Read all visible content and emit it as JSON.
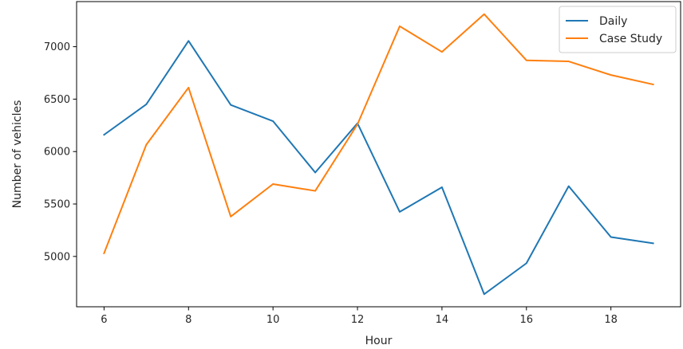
{
  "chart_data": {
    "type": "line",
    "title": "",
    "xlabel": "Hour",
    "ylabel": "Number of vehicles",
    "x": [
      6,
      7,
      8,
      9,
      10,
      11,
      12,
      13,
      14,
      15,
      16,
      17,
      18,
      19
    ],
    "xlim": [
      5.35,
      19.65
    ],
    "ylim": [
      4520,
      7430
    ],
    "xticks": [
      6,
      8,
      10,
      12,
      14,
      16,
      18
    ],
    "yticks": [
      5000,
      5500,
      6000,
      6500,
      7000
    ],
    "grid": false,
    "legend_position": "top-right",
    "series": [
      {
        "name": "Daily",
        "color": "#1f77b4",
        "values": [
          6160,
          6450,
          7055,
          6445,
          6290,
          5800,
          6270,
          5425,
          5660,
          4640,
          4935,
          5670,
          5185,
          5125
        ]
      },
      {
        "name": "Case Study",
        "color": "#ff7f0e",
        "values": [
          5030,
          6065,
          6610,
          5380,
          5690,
          5625,
          6260,
          7195,
          6950,
          7310,
          6870,
          6860,
          6730,
          6640
        ]
      }
    ]
  }
}
